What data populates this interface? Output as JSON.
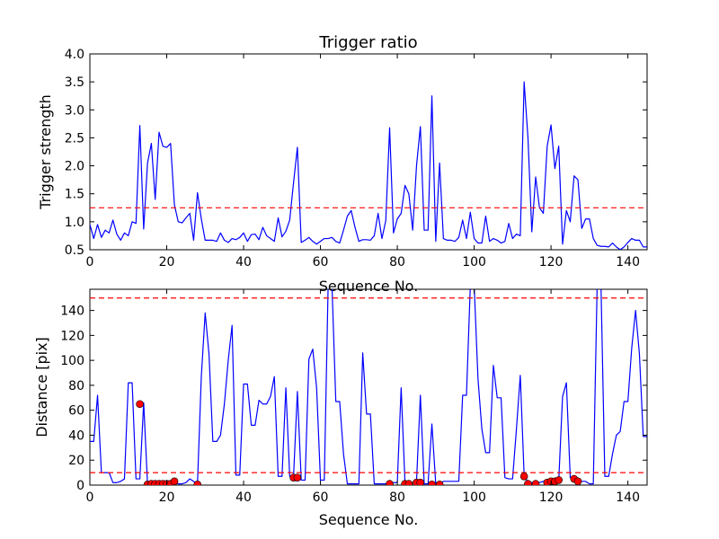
{
  "chart_data": [
    {
      "type": "line",
      "title": "Trigger ratio",
      "xlabel": "Sequence No.",
      "ylabel": "Trigger strength",
      "xlim": [
        0,
        145
      ],
      "ylim": [
        0.5,
        4.0
      ],
      "xticks": [
        0,
        20,
        40,
        60,
        80,
        100,
        120,
        140
      ],
      "yticks": [
        0.5,
        1.0,
        1.5,
        2.0,
        2.5,
        3.0,
        3.5,
        4.0
      ],
      "xtick_labels": [
        "0",
        "20",
        "40",
        "60",
        "80",
        "100",
        "120",
        "140"
      ],
      "ytick_labels": [
        "0.5",
        "1.0",
        "1.5",
        "2.0",
        "2.5",
        "3.0",
        "3.5",
        "4.0"
      ],
      "grid": false,
      "series": [
        {
          "color": "#0000ff",
          "x": [
            0,
            1,
            2,
            3,
            4,
            5,
            6,
            7,
            8,
            9,
            10,
            11,
            12,
            13,
            14,
            15,
            16,
            17,
            18,
            19,
            20,
            21,
            22,
            23,
            24,
            25,
            26,
            27,
            28,
            29,
            30,
            31,
            32,
            33,
            34,
            35,
            36,
            37,
            38,
            39,
            40,
            41,
            42,
            43,
            44,
            45,
            46,
            47,
            48,
            49,
            50,
            51,
            52,
            53,
            54,
            55,
            56,
            57,
            58,
            59,
            60,
            61,
            62,
            63,
            64,
            65,
            66,
            67,
            68,
            69,
            70,
            71,
            72,
            73,
            74,
            75,
            76,
            77,
            78,
            79,
            80,
            81,
            82,
            83,
            84,
            85,
            86,
            87,
            88,
            89,
            90,
            91,
            92,
            93,
            94,
            95,
            96,
            97,
            98,
            99,
            100,
            101,
            102,
            103,
            104,
            105,
            106,
            107,
            108,
            109,
            110,
            111,
            112,
            113,
            114,
            115,
            116,
            117,
            118,
            119,
            120,
            121,
            122,
            123,
            124,
            125,
            126,
            127,
            128,
            129,
            130,
            131,
            132,
            133,
            134,
            135,
            136,
            137,
            138,
            139,
            140,
            141,
            142,
            143,
            144,
            145
          ],
          "y": [
            0.95,
            0.7,
            0.95,
            0.72,
            0.85,
            0.8,
            1.03,
            0.78,
            0.67,
            0.8,
            0.75,
            1.0,
            0.97,
            2.72,
            0.87,
            2.05,
            2.4,
            1.4,
            2.6,
            2.35,
            2.33,
            2.4,
            1.3,
            1.0,
            0.98,
            1.07,
            1.15,
            0.67,
            1.52,
            1.05,
            0.67,
            0.67,
            0.67,
            0.65,
            0.8,
            0.67,
            0.63,
            0.7,
            0.68,
            0.72,
            0.8,
            0.65,
            0.77,
            0.78,
            0.68,
            0.9,
            0.75,
            0.7,
            0.65,
            1.07,
            0.73,
            0.83,
            1.03,
            1.7,
            2.33,
            0.63,
            0.67,
            0.72,
            0.65,
            0.6,
            0.65,
            0.7,
            0.7,
            0.72,
            0.65,
            0.62,
            0.85,
            1.1,
            1.2,
            0.9,
            0.65,
            0.68,
            0.68,
            0.67,
            0.75,
            1.15,
            0.7,
            1.02,
            2.68,
            0.8,
            1.05,
            1.15,
            1.65,
            1.5,
            0.85,
            2.0,
            2.7,
            0.85,
            0.85,
            3.25,
            0.65,
            2.05,
            0.7,
            0.67,
            0.67,
            0.65,
            0.72,
            1.03,
            0.7,
            1.17,
            0.7,
            0.62,
            0.62,
            1.1,
            0.65,
            0.7,
            0.67,
            0.62,
            0.65,
            0.97,
            0.7,
            0.78,
            0.75,
            3.5,
            2.5,
            0.82,
            1.8,
            1.25,
            1.15,
            2.35,
            2.73,
            1.95,
            2.35,
            0.6,
            1.2,
            1.0,
            1.82,
            1.75,
            0.88,
            1.05,
            1.05,
            0.7,
            0.58,
            0.56,
            0.56,
            0.55,
            0.62,
            0.55,
            0.5,
            0.55,
            0.63,
            0.7,
            0.67,
            0.67,
            0.55,
            0.55
          ]
        },
        {
          "style": "dashed",
          "color": "#ff0000",
          "x": [
            0,
            145
          ],
          "y": [
            1.25,
            1.25
          ]
        }
      ]
    },
    {
      "type": "line",
      "title": "",
      "xlabel": "Sequence No.",
      "ylabel": "Distance [pix]",
      "xlim": [
        0,
        145
      ],
      "ylim": [
        0,
        157
      ],
      "xticks": [
        0,
        20,
        40,
        60,
        80,
        100,
        120,
        140
      ],
      "yticks": [
        0,
        20,
        40,
        60,
        80,
        100,
        120,
        140
      ],
      "xtick_labels": [
        "0",
        "20",
        "40",
        "60",
        "80",
        "100",
        "120",
        "140"
      ],
      "ytick_labels": [
        "0",
        "20",
        "40",
        "60",
        "80",
        "100",
        "120",
        "140"
      ],
      "grid": false,
      "series": [
        {
          "color": "#0000ff",
          "x": [
            0,
            1,
            2,
            3,
            4,
            5,
            6,
            7,
            8,
            9,
            10,
            11,
            12,
            13,
            14,
            15,
            16,
            17,
            18,
            19,
            20,
            21,
            22,
            23,
            24,
            25,
            26,
            27,
            28,
            29,
            30,
            31,
            32,
            33,
            34,
            35,
            36,
            37,
            38,
            39,
            40,
            41,
            42,
            43,
            44,
            45,
            46,
            47,
            48,
            49,
            50,
            51,
            52,
            53,
            54,
            55,
            56,
            57,
            58,
            59,
            60,
            61,
            62,
            63,
            64,
            65,
            66,
            67,
            68,
            69,
            70,
            71,
            72,
            73,
            74,
            75,
            76,
            77,
            78,
            79,
            80,
            81,
            82,
            83,
            84,
            85,
            86,
            87,
            88,
            89,
            90,
            91,
            92,
            93,
            94,
            95,
            96,
            97,
            98,
            99,
            100,
            101,
            102,
            103,
            104,
            105,
            106,
            107,
            108,
            109,
            110,
            111,
            112,
            113,
            114,
            115,
            116,
            117,
            118,
            119,
            120,
            121,
            122,
            123,
            124,
            125,
            126,
            127,
            128,
            129,
            130,
            131,
            132,
            133,
            134,
            135,
            136,
            137,
            138,
            139,
            140,
            141,
            142,
            143,
            144,
            145
          ],
          "y": [
            35,
            35,
            72,
            10,
            10,
            10,
            2,
            2,
            3,
            5,
            82,
            82,
            5,
            5,
            66,
            1,
            2,
            2,
            2,
            2,
            2,
            2,
            3,
            1,
            1,
            2,
            5,
            3,
            1,
            87,
            138,
            105,
            35,
            35,
            40,
            65,
            100,
            128,
            8,
            8,
            81,
            81,
            48,
            48,
            68,
            65,
            65,
            71,
            87,
            7,
            7,
            78,
            7,
            7,
            75,
            4,
            4,
            101,
            109,
            78,
            4,
            4,
            160,
            160,
            67,
            67,
            25,
            1,
            1,
            1,
            1,
            106,
            57,
            57,
            1,
            1,
            1,
            1,
            2,
            2,
            2,
            78,
            2,
            2,
            2,
            3,
            72,
            1,
            1,
            49,
            1,
            1,
            3,
            3,
            3,
            3,
            3,
            72,
            72,
            160,
            160,
            85,
            45,
            26,
            26,
            96,
            70,
            70,
            6,
            5,
            5,
            45,
            88,
            8,
            2,
            2,
            2,
            2,
            3,
            3,
            3,
            3,
            3,
            71,
            82,
            6,
            6,
            5,
            3,
            3,
            1,
            1,
            160,
            160,
            7,
            7,
            25,
            40,
            43,
            67,
            67,
            110,
            140,
            105,
            39,
            39
          ]
        },
        {
          "style": "dashed",
          "color": "#ff0000",
          "x": [
            0,
            145
          ],
          "y": [
            10,
            10
          ]
        },
        {
          "style": "dashed",
          "color": "#ff0000",
          "x": [
            0,
            145
          ],
          "y": [
            150,
            150
          ]
        },
        {
          "type": "scatter",
          "color": "#ff0000",
          "x": [
            13,
            15,
            16,
            17,
            18,
            19,
            20,
            21,
            22,
            28,
            53,
            54,
            78,
            82,
            83,
            85,
            86,
            89,
            91,
            113,
            114,
            116,
            119,
            120,
            121,
            122,
            126,
            127
          ],
          "y": [
            65,
            0.5,
            1,
            1,
            1,
            1,
            1,
            1,
            3,
            0.5,
            6,
            6,
            1,
            1,
            1,
            2,
            2,
            0.5,
            0.5,
            7,
            1,
            1,
            2,
            3,
            3,
            4,
            5,
            3
          ]
        }
      ]
    }
  ]
}
